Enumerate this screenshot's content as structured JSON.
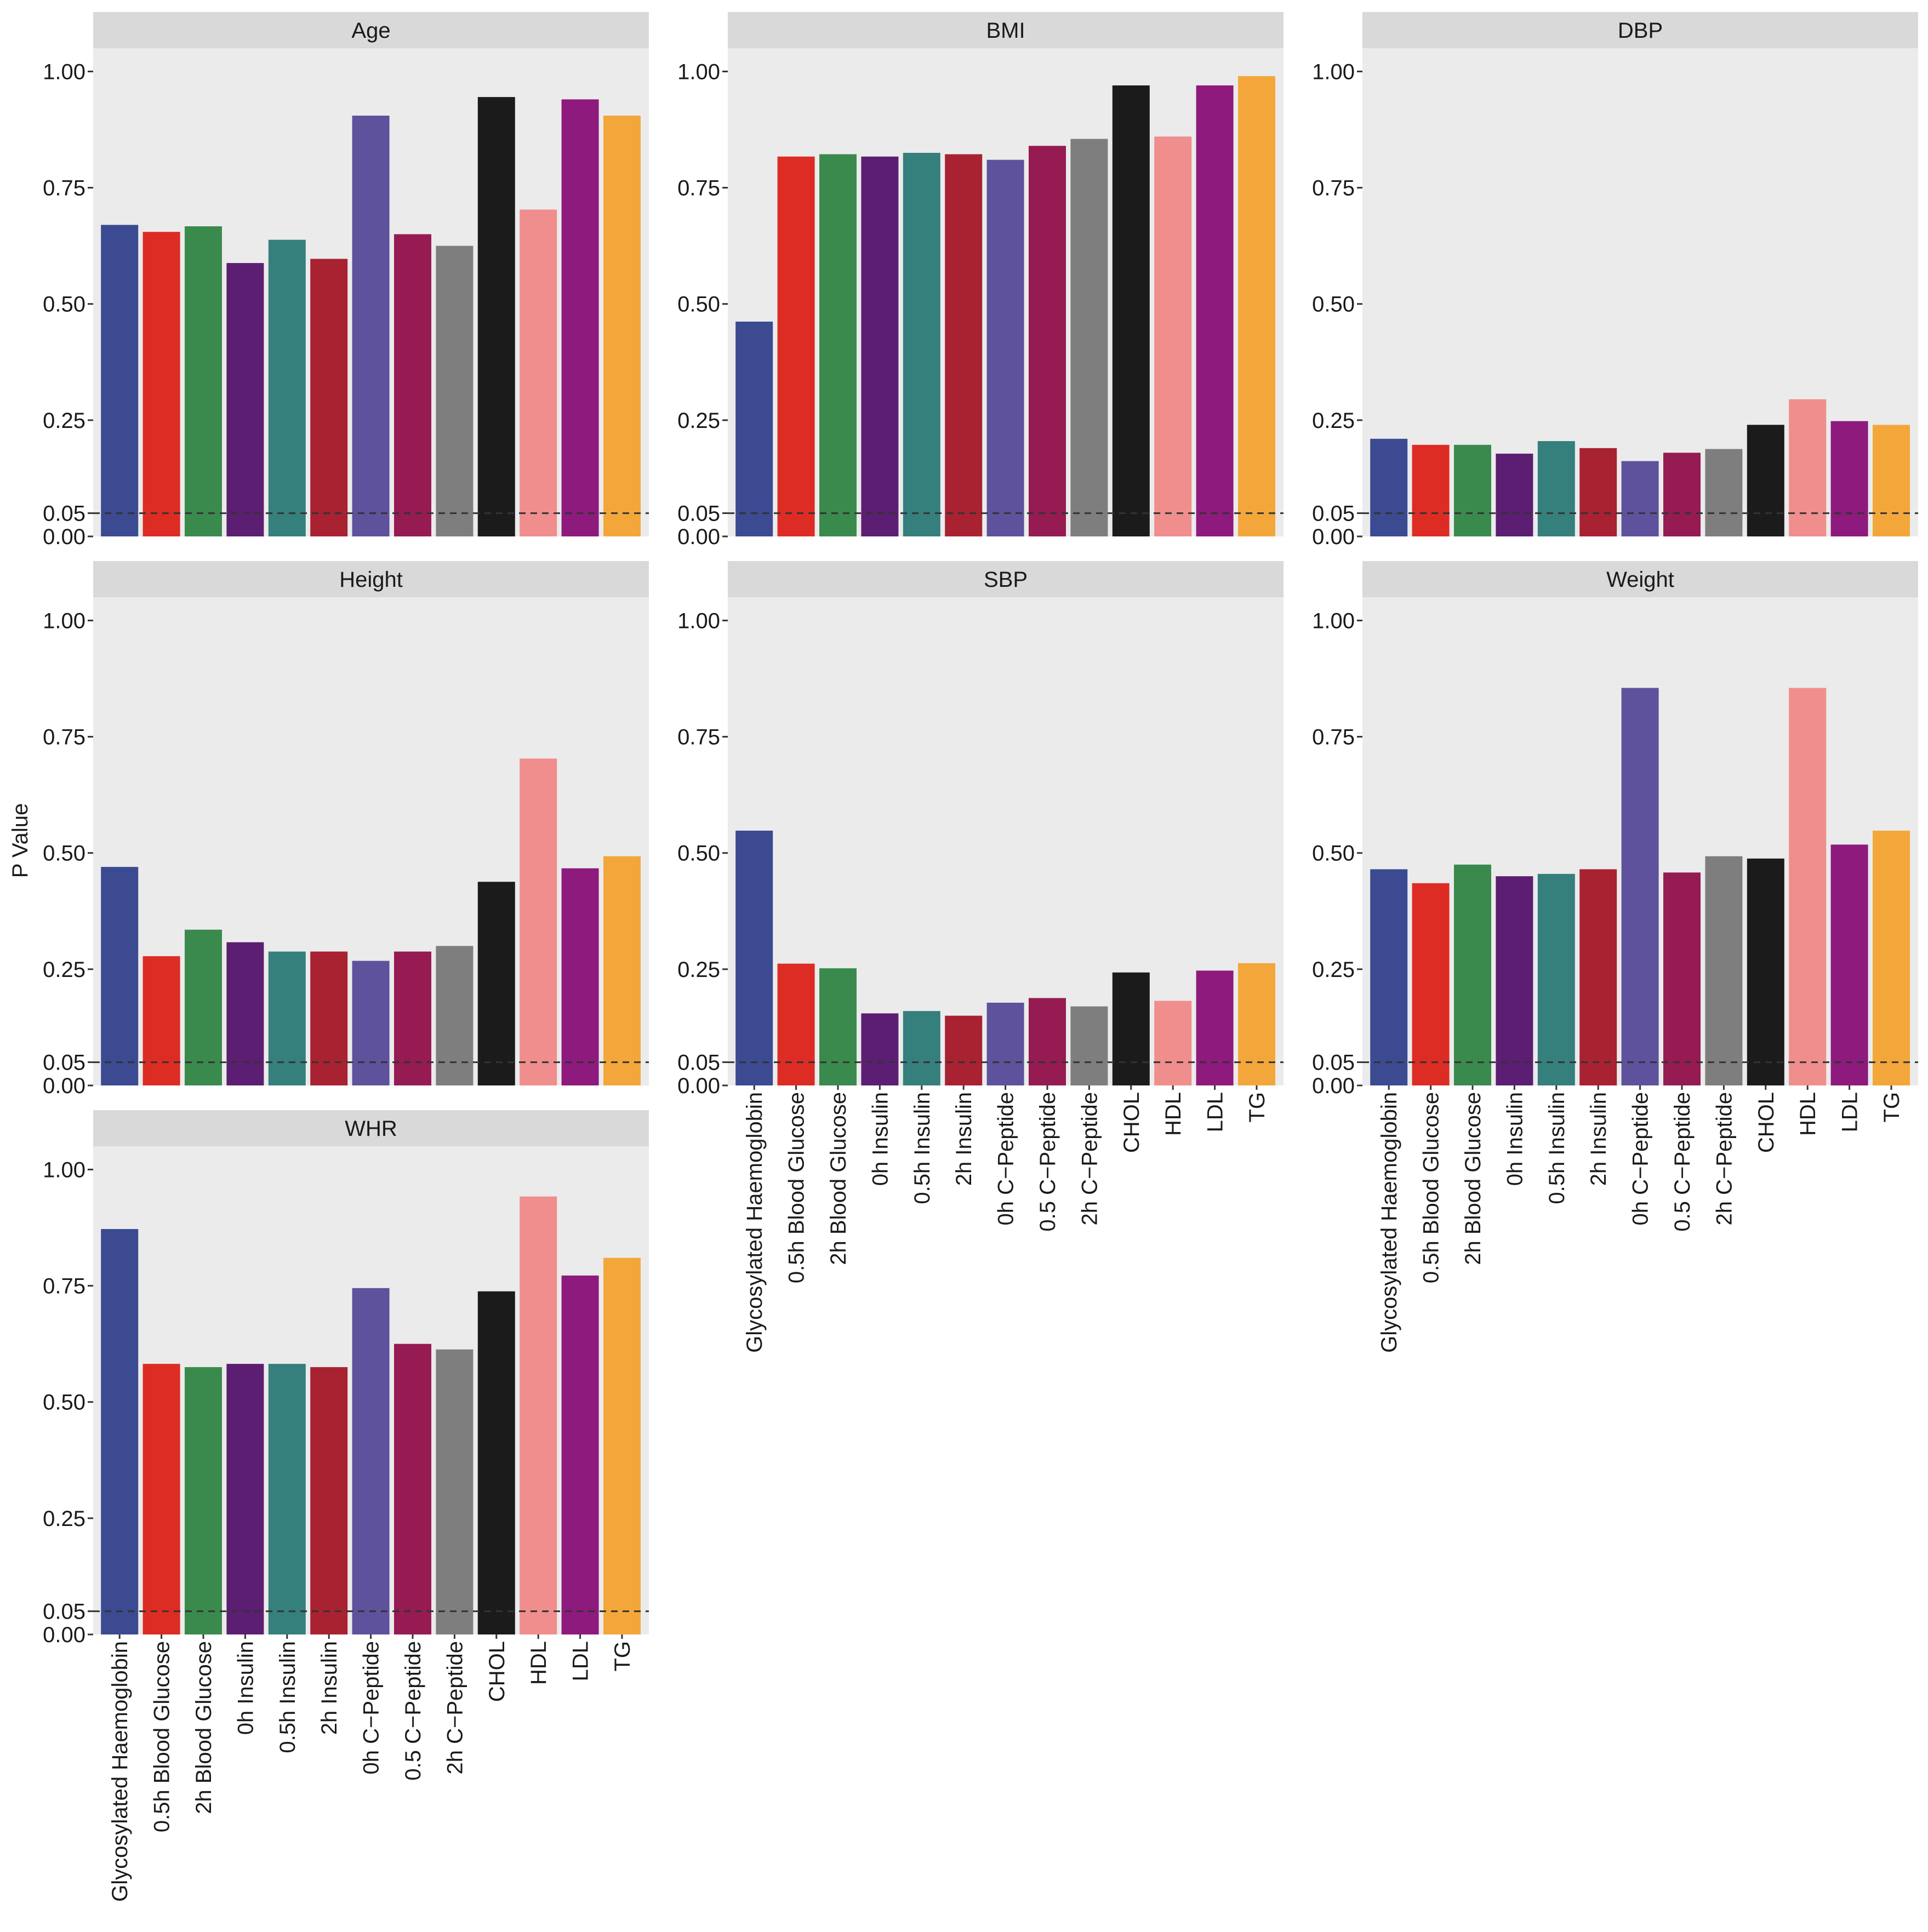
{
  "chart_data": {
    "type": "bar",
    "ylabel": "P Value",
    "ylim": [
      0,
      1.05
    ],
    "yticks": [
      "0.00",
      "0.05",
      "0.25",
      "0.50",
      "0.75",
      "1.00"
    ],
    "ytick_values": [
      0,
      0.05,
      0.25,
      0.5,
      0.75,
      1.0
    ],
    "reference_line": 0.05,
    "categories": [
      "Glycosylated Haemoglobin",
      "0.5h Blood Glucose",
      "2h Blood Glucose",
      "0h Insulin",
      "0.5h Insulin",
      "2h Insulin",
      "0h C−Peptide",
      "0.5 C−Peptide",
      "2h C−Peptide",
      "CHOL",
      "HDL",
      "LDL",
      "TG"
    ],
    "colors": [
      "#3b4a91",
      "#dd2c24",
      "#3a8a4e",
      "#5c1e72",
      "#357f7d",
      "#a82232",
      "#5e529d",
      "#951b52",
      "#7e7e7e",
      "#1b1b1b",
      "#ef8e8d",
      "#8d1a7c",
      "#f3a73b"
    ],
    "panels": [
      {
        "name": "Age",
        "values": [
          0.67,
          0.655,
          0.667,
          0.588,
          0.638,
          0.597,
          0.905,
          0.65,
          0.625,
          0.945,
          0.703,
          0.94,
          0.905
        ]
      },
      {
        "name": "BMI",
        "values": [
          0.462,
          0.817,
          0.822,
          0.817,
          0.825,
          0.822,
          0.81,
          0.84,
          0.855,
          0.97,
          0.86,
          0.97,
          0.99
        ]
      },
      {
        "name": "DBP",
        "values": [
          0.21,
          0.197,
          0.197,
          0.178,
          0.205,
          0.19,
          0.162,
          0.18,
          0.188,
          0.24,
          0.295,
          0.248,
          0.24
        ]
      },
      {
        "name": "Height",
        "values": [
          0.47,
          0.278,
          0.335,
          0.308,
          0.288,
          0.288,
          0.268,
          0.288,
          0.3,
          0.438,
          0.703,
          0.467,
          0.493
        ]
      },
      {
        "name": "SBP",
        "values": [
          0.548,
          0.262,
          0.252,
          0.155,
          0.16,
          0.15,
          0.178,
          0.188,
          0.17,
          0.243,
          0.182,
          0.247,
          0.263
        ]
      },
      {
        "name": "Weight",
        "values": [
          0.465,
          0.435,
          0.475,
          0.45,
          0.455,
          0.465,
          0.855,
          0.458,
          0.493,
          0.488,
          0.855,
          0.518,
          0.548
        ]
      },
      {
        "name": "WHR",
        "values": [
          0.872,
          0.582,
          0.575,
          0.582,
          0.582,
          0.575,
          0.745,
          0.625,
          0.613,
          0.738,
          0.942,
          0.772,
          0.81
        ]
      }
    ]
  }
}
